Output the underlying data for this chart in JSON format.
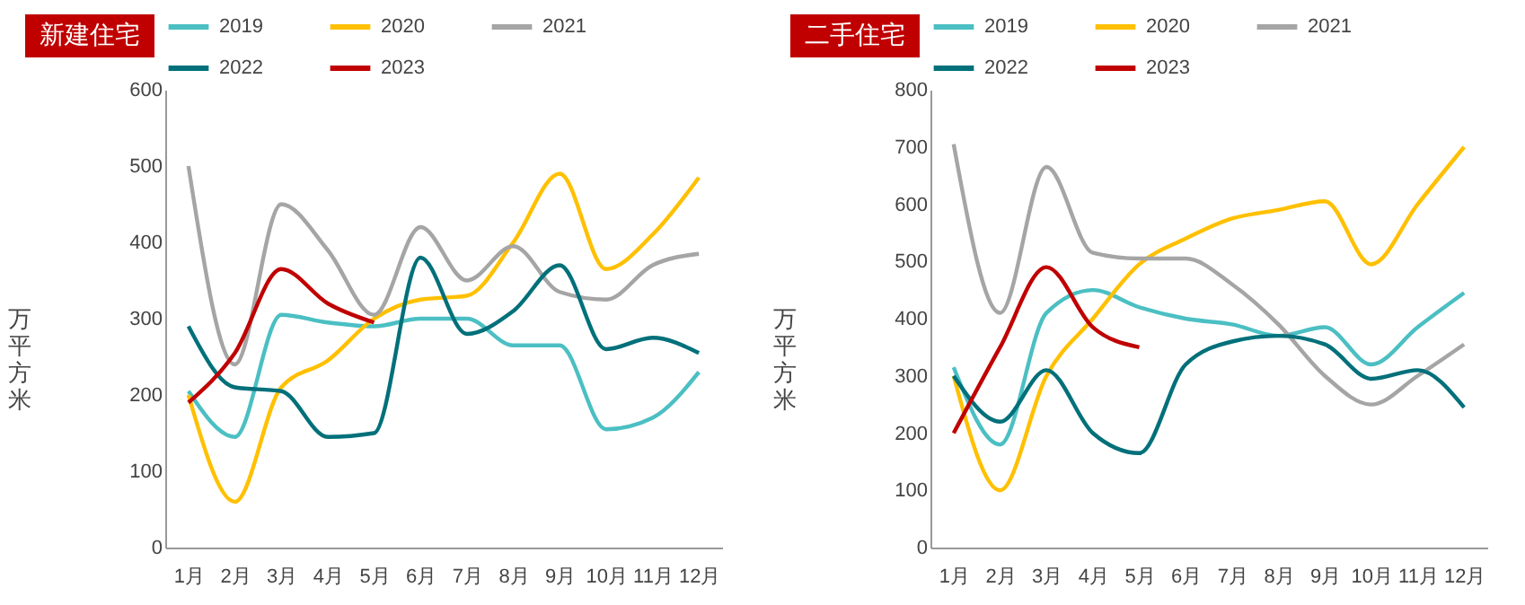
{
  "chart_data": [
    {
      "type": "line",
      "title": "新建住宅",
      "ylabel": "万平方米",
      "categories": [
        "1月",
        "2月",
        "3月",
        "4月",
        "5月",
        "6月",
        "7月",
        "8月",
        "9月",
        "10月",
        "11月",
        "12月"
      ],
      "ylim": [
        0,
        600
      ],
      "yticks": [
        0,
        100,
        200,
        300,
        400,
        500,
        600
      ],
      "grid": false,
      "legend": "top",
      "series": [
        {
          "name": "2019",
          "color": "#4bbfc3",
          "values": [
            205,
            145,
            305,
            295,
            290,
            300,
            300,
            265,
            265,
            155,
            170,
            230
          ]
        },
        {
          "name": "2020",
          "color": "#ffc000",
          "values": [
            200,
            60,
            210,
            245,
            300,
            325,
            330,
            400,
            490,
            365,
            410,
            485
          ]
        },
        {
          "name": "2021",
          "color": "#a5a5a5",
          "values": [
            500,
            240,
            450,
            390,
            305,
            420,
            350,
            395,
            335,
            325,
            370,
            385
          ]
        },
        {
          "name": "2022",
          "color": "#00707a",
          "values": [
            290,
            210,
            205,
            145,
            150,
            380,
            280,
            310,
            370,
            260,
            275,
            255
          ]
        },
        {
          "name": "2023",
          "color": "#c00000",
          "values": [
            190,
            255,
            365,
            320,
            295,
            null,
            null,
            null,
            null,
            null,
            null,
            null
          ]
        }
      ]
    },
    {
      "type": "line",
      "title": "二手住宅",
      "ylabel": "万平方米",
      "categories": [
        "1月",
        "2月",
        "3月",
        "4月",
        "5月",
        "6月",
        "7月",
        "8月",
        "9月",
        "10月",
        "11月",
        "12月"
      ],
      "ylim": [
        0,
        800
      ],
      "yticks": [
        0,
        100,
        200,
        300,
        400,
        500,
        600,
        700,
        800
      ],
      "grid": false,
      "legend": "top",
      "series": [
        {
          "name": "2019",
          "color": "#4bbfc3",
          "values": [
            315,
            180,
            410,
            450,
            420,
            400,
            390,
            370,
            385,
            320,
            385,
            445
          ]
        },
        {
          "name": "2020",
          "color": "#ffc000",
          "values": [
            300,
            100,
            300,
            400,
            495,
            540,
            575,
            590,
            605,
            495,
            600,
            700
          ]
        },
        {
          "name": "2021",
          "color": "#a5a5a5",
          "values": [
            705,
            410,
            665,
            515,
            505,
            505,
            460,
            390,
            300,
            250,
            300,
            355
          ]
        },
        {
          "name": "2022",
          "color": "#00707a",
          "values": [
            300,
            220,
            310,
            200,
            165,
            320,
            360,
            370,
            355,
            295,
            310,
            245
          ]
        },
        {
          "name": "2023",
          "color": "#c00000",
          "values": [
            200,
            350,
            490,
            385,
            350,
            null,
            null,
            null,
            null,
            null,
            null,
            null
          ]
        }
      ]
    }
  ]
}
